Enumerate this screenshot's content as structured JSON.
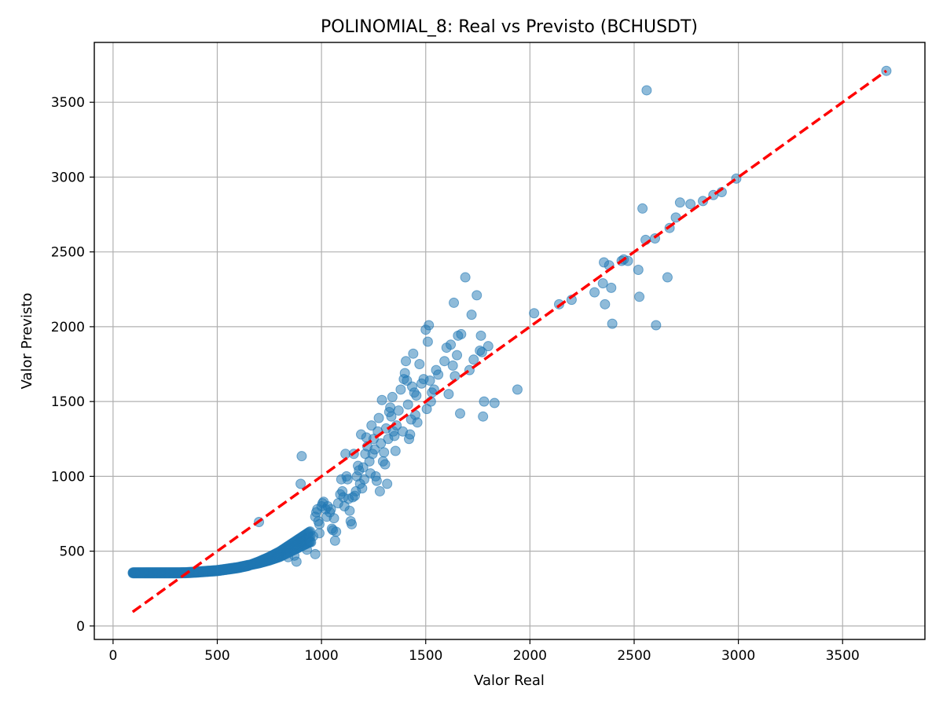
{
  "chart_data": {
    "type": "scatter",
    "title": "POLINOMIAL_8: Real vs Previsto (BCHUSDT)",
    "xlabel": "Valor Real",
    "ylabel": "Valor Previsto",
    "xlim": [
      -90,
      3895
    ],
    "ylim": [
      -90,
      3900
    ],
    "xticks": [
      0,
      500,
      1000,
      1500,
      2000,
      2500,
      3000,
      3500
    ],
    "yticks": [
      0,
      500,
      1000,
      1500,
      2000,
      2500,
      3000,
      3500
    ],
    "grid": true,
    "colors": {
      "points": "#1f77b4",
      "reference_line": "#ff0000"
    },
    "reference_line": {
      "x": [
        94,
        3710
      ],
      "y": [
        94,
        3710
      ],
      "style": "dashed"
    },
    "curve": [
      [
        95,
        355
      ],
      [
        150,
        355
      ],
      [
        200,
        355
      ],
      [
        250,
        355
      ],
      [
        300,
        355
      ],
      [
        350,
        356
      ],
      [
        400,
        360
      ],
      [
        450,
        365
      ],
      [
        500,
        370
      ],
      [
        550,
        380
      ],
      [
        600,
        390
      ],
      [
        650,
        405
      ],
      [
        700,
        425
      ],
      [
        750,
        450
      ],
      [
        800,
        480
      ],
      [
        850,
        520
      ],
      [
        900,
        560
      ],
      [
        950,
        600
      ]
    ],
    "points": [
      [
        700,
        695
      ],
      [
        900,
        950
      ],
      [
        905,
        1135
      ],
      [
        870,
        470
      ],
      [
        880,
        430
      ],
      [
        840,
        460
      ],
      [
        930,
        510
      ],
      [
        950,
        560
      ],
      [
        960,
        600
      ],
      [
        970,
        480
      ],
      [
        990,
        620
      ],
      [
        970,
        730
      ],
      [
        975,
        760
      ],
      [
        980,
        780
      ],
      [
        985,
        700
      ],
      [
        990,
        680
      ],
      [
        1000,
        800
      ],
      [
        1005,
        820
      ],
      [
        1010,
        830
      ],
      [
        1020,
        780
      ],
      [
        1025,
        730
      ],
      [
        1030,
        800
      ],
      [
        1040,
        760
      ],
      [
        1045,
        780
      ],
      [
        1050,
        650
      ],
      [
        1055,
        640
      ],
      [
        1060,
        720
      ],
      [
        1065,
        570
      ],
      [
        1070,
        630
      ],
      [
        1080,
        820
      ],
      [
        1090,
        880
      ],
      [
        1095,
        980
      ],
      [
        1100,
        900
      ],
      [
        1105,
        860
      ],
      [
        1110,
        800
      ],
      [
        1115,
        1150
      ],
      [
        1120,
        1000
      ],
      [
        1125,
        980
      ],
      [
        1130,
        850
      ],
      [
        1135,
        770
      ],
      [
        1140,
        700
      ],
      [
        1145,
        680
      ],
      [
        1150,
        860
      ],
      [
        1155,
        1150
      ],
      [
        1160,
        870
      ],
      [
        1165,
        900
      ],
      [
        1170,
        1000
      ],
      [
        1175,
        1070
      ],
      [
        1180,
        1040
      ],
      [
        1185,
        950
      ],
      [
        1190,
        1280
      ],
      [
        1195,
        920
      ],
      [
        1200,
        1060
      ],
      [
        1205,
        980
      ],
      [
        1210,
        1150
      ],
      [
        1215,
        1260
      ],
      [
        1220,
        1200
      ],
      [
        1230,
        1100
      ],
      [
        1235,
        1020
      ],
      [
        1240,
        1340
      ],
      [
        1245,
        1150
      ],
      [
        1250,
        1250
      ],
      [
        1255,
        1180
      ],
      [
        1260,
        1000
      ],
      [
        1265,
        970
      ],
      [
        1270,
        1300
      ],
      [
        1275,
        1390
      ],
      [
        1280,
        900
      ],
      [
        1285,
        1220
      ],
      [
        1290,
        1510
      ],
      [
        1295,
        1100
      ],
      [
        1300,
        1160
      ],
      [
        1305,
        1080
      ],
      [
        1310,
        1320
      ],
      [
        1315,
        950
      ],
      [
        1320,
        1250
      ],
      [
        1325,
        1430
      ],
      [
        1330,
        1460
      ],
      [
        1335,
        1400
      ],
      [
        1340,
        1530
      ],
      [
        1345,
        1300
      ],
      [
        1350,
        1270
      ],
      [
        1355,
        1170
      ],
      [
        1360,
        1340
      ],
      [
        1370,
        1440
      ],
      [
        1380,
        1580
      ],
      [
        1390,
        1300
      ],
      [
        1395,
        1650
      ],
      [
        1400,
        1690
      ],
      [
        1405,
        1770
      ],
      [
        1410,
        1640
      ],
      [
        1415,
        1480
      ],
      [
        1420,
        1250
      ],
      [
        1425,
        1280
      ],
      [
        1430,
        1380
      ],
      [
        1435,
        1600
      ],
      [
        1440,
        1820
      ],
      [
        1445,
        1560
      ],
      [
        1450,
        1410
      ],
      [
        1455,
        1540
      ],
      [
        1460,
        1360
      ],
      [
        1470,
        1750
      ],
      [
        1480,
        1620
      ],
      [
        1490,
        1650
      ],
      [
        1500,
        1980
      ],
      [
        1505,
        1450
      ],
      [
        1510,
        1900
      ],
      [
        1515,
        2010
      ],
      [
        1520,
        1640
      ],
      [
        1525,
        1500
      ],
      [
        1530,
        1560
      ],
      [
        1540,
        1580
      ],
      [
        1550,
        1710
      ],
      [
        1560,
        1680
      ],
      [
        1590,
        1770
      ],
      [
        1600,
        1860
      ],
      [
        1610,
        1550
      ],
      [
        1620,
        1880
      ],
      [
        1630,
        1740
      ],
      [
        1635,
        2160
      ],
      [
        1640,
        1670
      ],
      [
        1650,
        1810
      ],
      [
        1655,
        1940
      ],
      [
        1665,
        1420
      ],
      [
        1670,
        1950
      ],
      [
        1690,
        2330
      ],
      [
        1710,
        1710
      ],
      [
        1720,
        2080
      ],
      [
        1730,
        1780
      ],
      [
        1745,
        2210
      ],
      [
        1760,
        1840
      ],
      [
        1765,
        1940
      ],
      [
        1770,
        1830
      ],
      [
        1775,
        1400
      ],
      [
        1780,
        1500
      ],
      [
        1800,
        1870
      ],
      [
        1830,
        1490
      ],
      [
        1940,
        1580
      ],
      [
        2020,
        2090
      ],
      [
        2140,
        2150
      ],
      [
        2200,
        2180
      ],
      [
        2310,
        2230
      ],
      [
        2350,
        2290
      ],
      [
        2355,
        2430
      ],
      [
        2360,
        2150
      ],
      [
        2380,
        2410
      ],
      [
        2390,
        2260
      ],
      [
        2395,
        2020
      ],
      [
        2440,
        2440
      ],
      [
        2450,
        2450
      ],
      [
        2470,
        2440
      ],
      [
        2520,
        2380
      ],
      [
        2525,
        2200
      ],
      [
        2540,
        2790
      ],
      [
        2555,
        2580
      ],
      [
        2560,
        3580
      ],
      [
        2600,
        2590
      ],
      [
        2605,
        2010
      ],
      [
        2660,
        2330
      ],
      [
        2670,
        2660
      ],
      [
        2700,
        2730
      ],
      [
        2720,
        2830
      ],
      [
        2770,
        2820
      ],
      [
        2830,
        2840
      ],
      [
        2880,
        2880
      ],
      [
        2920,
        2900
      ],
      [
        2990,
        2990
      ],
      [
        3710,
        3710
      ]
    ]
  }
}
